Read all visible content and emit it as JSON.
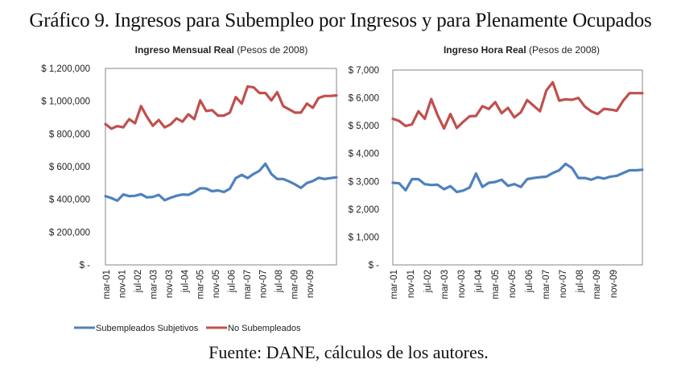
{
  "figure": {
    "title": "Gráfico 9. Ingresos para Subempleo por Ingresos y para Plenamente Ocupados",
    "source": "Fuente: DANE, cálculos de los autores."
  },
  "legend": [
    {
      "name": "Subempleados Subjetivos",
      "color": "#4F81BD"
    },
    {
      "name": "No Subempleados",
      "color": "#C0504D"
    }
  ],
  "chart_data": [
    {
      "type": "line",
      "title_bold": "Ingreso Mensual Real",
      "title_rest": " (Pesos de 2008)",
      "xlabel": "",
      "ylabel": "",
      "ylim": [
        0,
        1200000
      ],
      "yticks": [
        0,
        200000,
        400000,
        600000,
        800000,
        1000000,
        1200000
      ],
      "ytick_labels": [
        "$ -",
        "$ 200,000",
        "$ 400,000",
        "$ 600,000",
        "$ 800,000",
        "$ 1,000,000",
        "$ 1,200,000"
      ],
      "xtick_labels": [
        "mar-01",
        "nov-01",
        "jul-02",
        "mar-03",
        "nov-03",
        "jul-04",
        "mar-05",
        "nov-05",
        "jul-06",
        "mar-07",
        "nov-07",
        "jul-08",
        "mar-09",
        "nov-09"
      ],
      "grid": false,
      "legend_position": "bottom",
      "x_points": 40,
      "series": [
        {
          "name": "Subempleados Subjetivos",
          "color": "#4F81BD",
          "values": [
            420000,
            408000,
            392000,
            430000,
            420000,
            422000,
            432000,
            412000,
            415000,
            428000,
            395000,
            410000,
            422000,
            430000,
            428000,
            445000,
            468000,
            466000,
            450000,
            455000,
            445000,
            465000,
            530000,
            550000,
            530000,
            555000,
            575000,
            618000,
            555000,
            525000,
            525000,
            510000,
            492000,
            470000,
            500000,
            512000,
            532000,
            525000,
            530000,
            535000
          ]
        },
        {
          "name": "No Subempleados",
          "color": "#C0504D",
          "values": [
            860000,
            832000,
            848000,
            840000,
            890000,
            865000,
            970000,
            905000,
            850000,
            885000,
            840000,
            858000,
            895000,
            875000,
            920000,
            890000,
            1005000,
            940000,
            945000,
            912000,
            912000,
            930000,
            1025000,
            985000,
            1090000,
            1085000,
            1050000,
            1050000,
            1005000,
            1055000,
            970000,
            950000,
            930000,
            930000,
            985000,
            960000,
            1020000,
            1032000,
            1032000,
            1035000
          ]
        }
      ]
    },
    {
      "type": "line",
      "title_bold": "Ingreso Hora Real",
      "title_rest": " (Pesos de 2008)",
      "xlabel": "",
      "ylabel": "",
      "ylim": [
        0,
        7000
      ],
      "yticks": [
        0,
        1000,
        2000,
        3000,
        4000,
        5000,
        6000,
        7000
      ],
      "ytick_labels": [
        "$ -",
        "$ 1,000",
        "$ 2,000",
        "$ 3,000",
        "$ 4,000",
        "$ 5,000",
        "$ 6,000",
        "$ 7,000"
      ],
      "xtick_labels": [
        "mar-01",
        "nov-01",
        "jul-02",
        "mar-03",
        "nov-03",
        "jul-04",
        "mar-05",
        "nov-05",
        "jul-06",
        "mar-07",
        "nov-07",
        "jul-08",
        "mar-09",
        "nov-09"
      ],
      "grid": false,
      "legend_position": "bottom",
      "x_points": 40,
      "series": [
        {
          "name": "Subempleados Subjetivos",
          "color": "#4F81BD",
          "values": [
            2950,
            2930,
            2680,
            3080,
            3080,
            2900,
            2870,
            2880,
            2720,
            2830,
            2620,
            2670,
            2780,
            3280,
            2800,
            2950,
            2980,
            3060,
            2840,
            2900,
            2800,
            3080,
            3120,
            3150,
            3170,
            3300,
            3400,
            3630,
            3480,
            3120,
            3120,
            3060,
            3150,
            3100,
            3170,
            3200,
            3300,
            3400,
            3400,
            3420
          ]
        },
        {
          "name": "No Subempleados",
          "color": "#C0504D",
          "values": [
            5250,
            5170,
            4990,
            5050,
            5520,
            5250,
            5960,
            5380,
            4900,
            5420,
            4920,
            5140,
            5340,
            5350,
            5700,
            5600,
            5850,
            5450,
            5640,
            5300,
            5480,
            5920,
            5720,
            5520,
            6270,
            6560,
            5900,
            5950,
            5930,
            6000,
            5690,
            5520,
            5420,
            5610,
            5580,
            5540,
            5900,
            6170,
            6170,
            6170
          ]
        }
      ]
    }
  ]
}
